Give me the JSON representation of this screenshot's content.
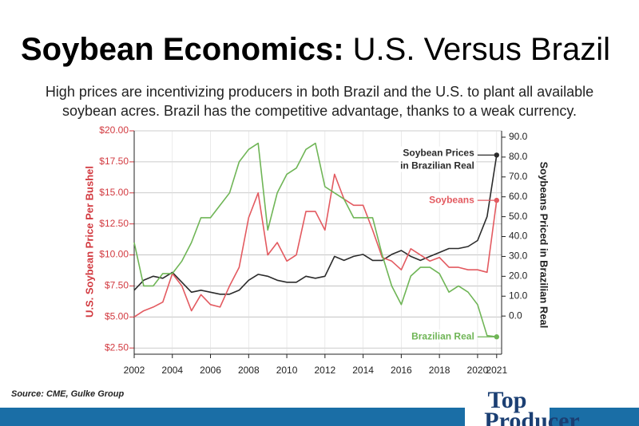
{
  "chart_data": {
    "type": "line",
    "title_parts": [
      "Soybean Economics:",
      "U.S. Versus Brazil"
    ],
    "subtitle_lines": [
      "High prices are incentivizing producers in both Brazil and the U.S. to plant all available",
      "soybean acres. Brazil has the competitive advantage, thanks to a weak currency."
    ],
    "ylabel": "U.S. Soybean Price Per Bushel",
    "y2label": "Soybeans Priced in Brazilian Real",
    "source": "Source: CME, Gulke Group",
    "brand": [
      "Top",
      "Producer"
    ],
    "x": [
      2002,
      2002.5,
      2003,
      2003.5,
      2004,
      2004.5,
      2005,
      2005.5,
      2006,
      2006.5,
      2007,
      2007.5,
      2008,
      2008.5,
      2009,
      2009.5,
      2010,
      2010.5,
      2011,
      2011.5,
      2012,
      2012.5,
      2013,
      2013.5,
      2014,
      2014.5,
      2015,
      2015.5,
      2016,
      2016.5,
      2017,
      2017.5,
      2018,
      2018.5,
      2019,
      2019.5,
      2020,
      2020.5,
      2021
    ],
    "xlim": [
      2002,
      2021.26
    ],
    "xticks": [
      2002,
      2004,
      2006,
      2008,
      2010,
      2012,
      2014,
      2016,
      2018,
      2020,
      2021
    ],
    "ylim": [
      2,
      20
    ],
    "yticks": [
      {
        "value": 2.5,
        "label": "$2.50"
      },
      {
        "value": 5,
        "label": "$5.00"
      },
      {
        "value": 7.5,
        "label": "$7.50"
      },
      {
        "value": 10,
        "label": "$10.00"
      },
      {
        "value": 12.5,
        "label": "$12.50"
      },
      {
        "value": 15,
        "label": "$15.00"
      },
      {
        "value": 17.5,
        "label": "$17.50"
      },
      {
        "value": 20,
        "label": "$20.00"
      }
    ],
    "y2lim": [
      -19.2,
      93.2
    ],
    "y2ticks": [
      {
        "value": 0,
        "label": "0.0"
      },
      {
        "value": 10,
        "label": "10.0"
      },
      {
        "value": 20,
        "label": "20.0"
      },
      {
        "value": 30,
        "label": "30.0"
      },
      {
        "value": 40,
        "label": "40.0"
      },
      {
        "value": 50,
        "label": "50.0"
      },
      {
        "value": 60,
        "label": "60.0"
      },
      {
        "value": 70,
        "label": "70.0"
      },
      {
        "value": 80,
        "label": "80.0"
      },
      {
        "value": 90,
        "label": "90.0"
      }
    ],
    "grid": true,
    "series": [
      {
        "name": "Soybean Prices in Brazilian Real",
        "color": "#2b2b2b",
        "axis": "y2",
        "values": [
          13,
          18,
          20,
          19,
          22,
          17,
          12,
          13,
          12,
          11,
          11,
          13,
          18,
          21,
          20,
          18,
          17,
          17,
          20,
          19,
          20,
          30,
          28,
          30,
          31,
          28,
          28,
          31,
          33,
          30,
          28,
          30,
          32,
          34,
          34,
          35,
          38,
          50,
          81
        ]
      },
      {
        "name": "Soybeans",
        "color": "#e35a60",
        "values": [
          5,
          5.5,
          5.8,
          6.2,
          8.5,
          7.5,
          5.5,
          6.8,
          6,
          5.8,
          7.5,
          9,
          13,
          15,
          10,
          11,
          9.5,
          10,
          13.5,
          13.5,
          12,
          16.5,
          14.5,
          14,
          14,
          12,
          9.8,
          9.5,
          8.8,
          10.5,
          10,
          9.5,
          9.8,
          9,
          9,
          8.8,
          8.8,
          8.6,
          14.4
        ]
      },
      {
        "name": "Brazilian Real",
        "color": "#6fb556",
        "values": [
          11,
          7.5,
          7.5,
          8.5,
          8.5,
          9.5,
          11,
          13,
          13,
          14,
          15,
          17.5,
          18.5,
          19,
          12,
          15,
          16.5,
          17,
          18.5,
          19,
          15.5,
          15,
          14.5,
          13,
          13,
          13,
          10,
          7.5,
          6,
          8.3,
          9,
          9,
          8.5,
          7,
          7.5,
          7,
          6,
          3.5,
          3.4
        ]
      }
    ]
  }
}
